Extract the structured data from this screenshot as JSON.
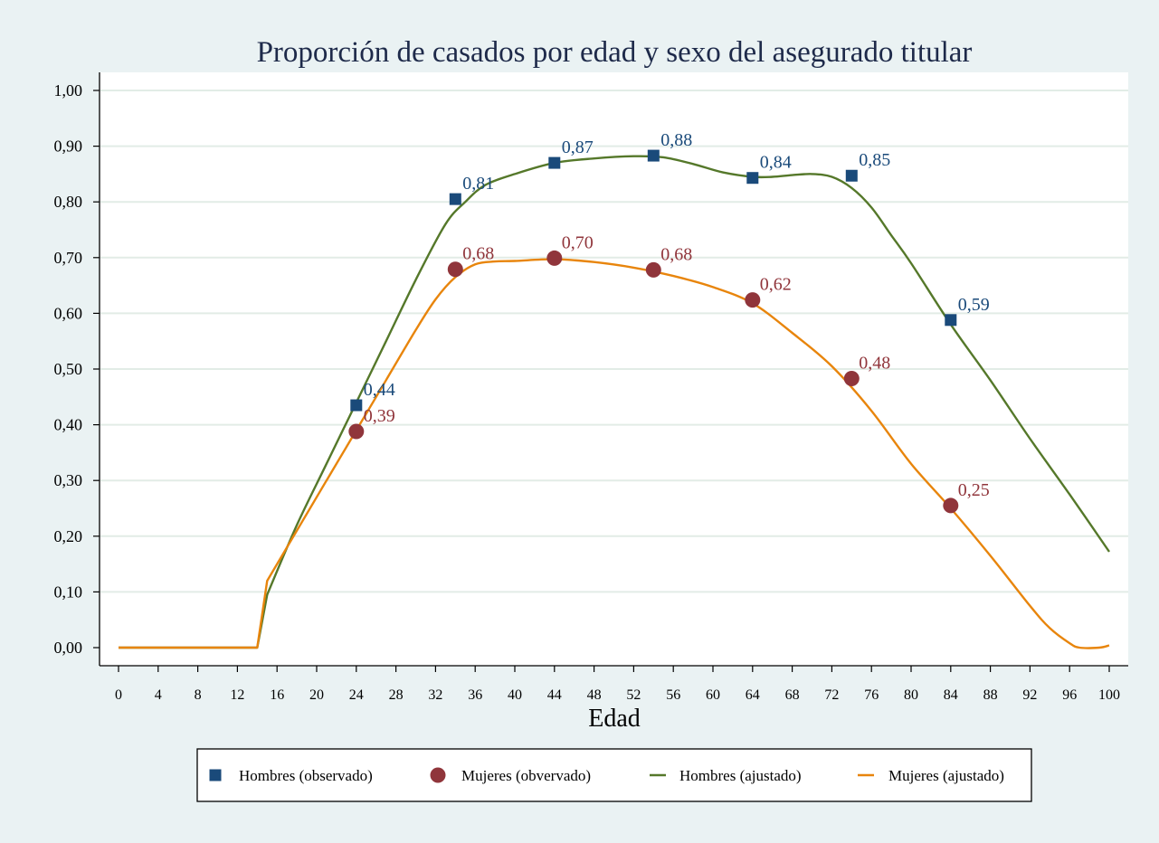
{
  "chart_data": {
    "type": "line",
    "title": "Proporción de casados por edad y sexo del asegurado titular",
    "xlabel": "Edad",
    "ylabel": "",
    "xlim": [
      0,
      100
    ],
    "ylim": [
      0,
      1
    ],
    "x_ticks": [
      "0",
      "4",
      "8",
      "12",
      "16",
      "20",
      "24",
      "28",
      "32",
      "36",
      "40",
      "44",
      "48",
      "52",
      "56",
      "60",
      "64",
      "68",
      "72",
      "76",
      "80",
      "84",
      "88",
      "92",
      "96",
      "100"
    ],
    "y_ticks": [
      "0,00",
      "0,10",
      "0,20",
      "0,30",
      "0,40",
      "0,50",
      "0,60",
      "0,70",
      "0,80",
      "0,90",
      "1,00"
    ],
    "grid": true,
    "legend_position": "bottom",
    "colors": {
      "hombres_obs": "#1a4a7a",
      "mujeres_obs": "#90353b",
      "hombres_fit": "#55782a",
      "mujeres_fit": "#e8850c",
      "page_bg": "#eaf2f3",
      "plot_bg": "#ffffff",
      "grid": "#e2ece6",
      "title": "#1e2a4a"
    },
    "series": [
      {
        "name": "Hombres (observado)",
        "kind": "scatter",
        "marker": "square",
        "x": [
          24,
          34,
          44,
          54,
          64,
          74,
          84
        ],
        "y": [
          0.435,
          0.805,
          0.87,
          0.883,
          0.843,
          0.847,
          0.588
        ],
        "labels": [
          "0,44",
          "0,81",
          "0,87",
          "0,88",
          "0,84",
          "0,85",
          "0,59"
        ]
      },
      {
        "name": "Mujeres (obvervado)",
        "kind": "scatter",
        "marker": "circle",
        "x": [
          24,
          34,
          44,
          54,
          64,
          74,
          84
        ],
        "y": [
          0.388,
          0.679,
          0.699,
          0.678,
          0.624,
          0.483,
          0.255
        ],
        "labels": [
          "0,39",
          "0,68",
          "0,70",
          "0,68",
          "0,62",
          "0,48",
          "0,25"
        ]
      },
      {
        "name": "Hombres (ajustado)",
        "kind": "line",
        "x": [
          0,
          14,
          15,
          18,
          21,
          24,
          27,
          30,
          33,
          35,
          37,
          40,
          44,
          48,
          52,
          55,
          58,
          61,
          64,
          66,
          68,
          70,
          72,
          74,
          76,
          78,
          80,
          84,
          88,
          92,
          96,
          100
        ],
        "y": [
          0,
          0,
          0.095,
          0.22,
          0.33,
          0.44,
          0.55,
          0.66,
          0.76,
          0.8,
          0.83,
          0.85,
          0.87,
          0.878,
          0.882,
          0.88,
          0.868,
          0.853,
          0.845,
          0.845,
          0.848,
          0.85,
          0.845,
          0.825,
          0.79,
          0.74,
          0.69,
          0.58,
          0.48,
          0.375,
          0.275,
          0.172
        ]
      },
      {
        "name": "Mujeres (ajustado)",
        "kind": "line",
        "x": [
          0,
          14,
          15,
          18,
          21,
          24,
          27,
          30,
          32,
          34,
          36,
          38,
          40,
          44,
          48,
          52,
          56,
          60,
          64,
          68,
          72,
          76,
          80,
          84,
          88,
          92,
          94,
          96,
          97,
          99,
          100
        ],
        "y": [
          0,
          0,
          0.12,
          0.21,
          0.3,
          0.39,
          0.48,
          0.57,
          0.625,
          0.665,
          0.688,
          0.693,
          0.694,
          0.697,
          0.692,
          0.682,
          0.667,
          0.647,
          0.618,
          0.565,
          0.505,
          0.425,
          0.33,
          0.25,
          0.165,
          0.075,
          0.035,
          0.008,
          0.0,
          0.0,
          0.004
        ]
      }
    ]
  }
}
